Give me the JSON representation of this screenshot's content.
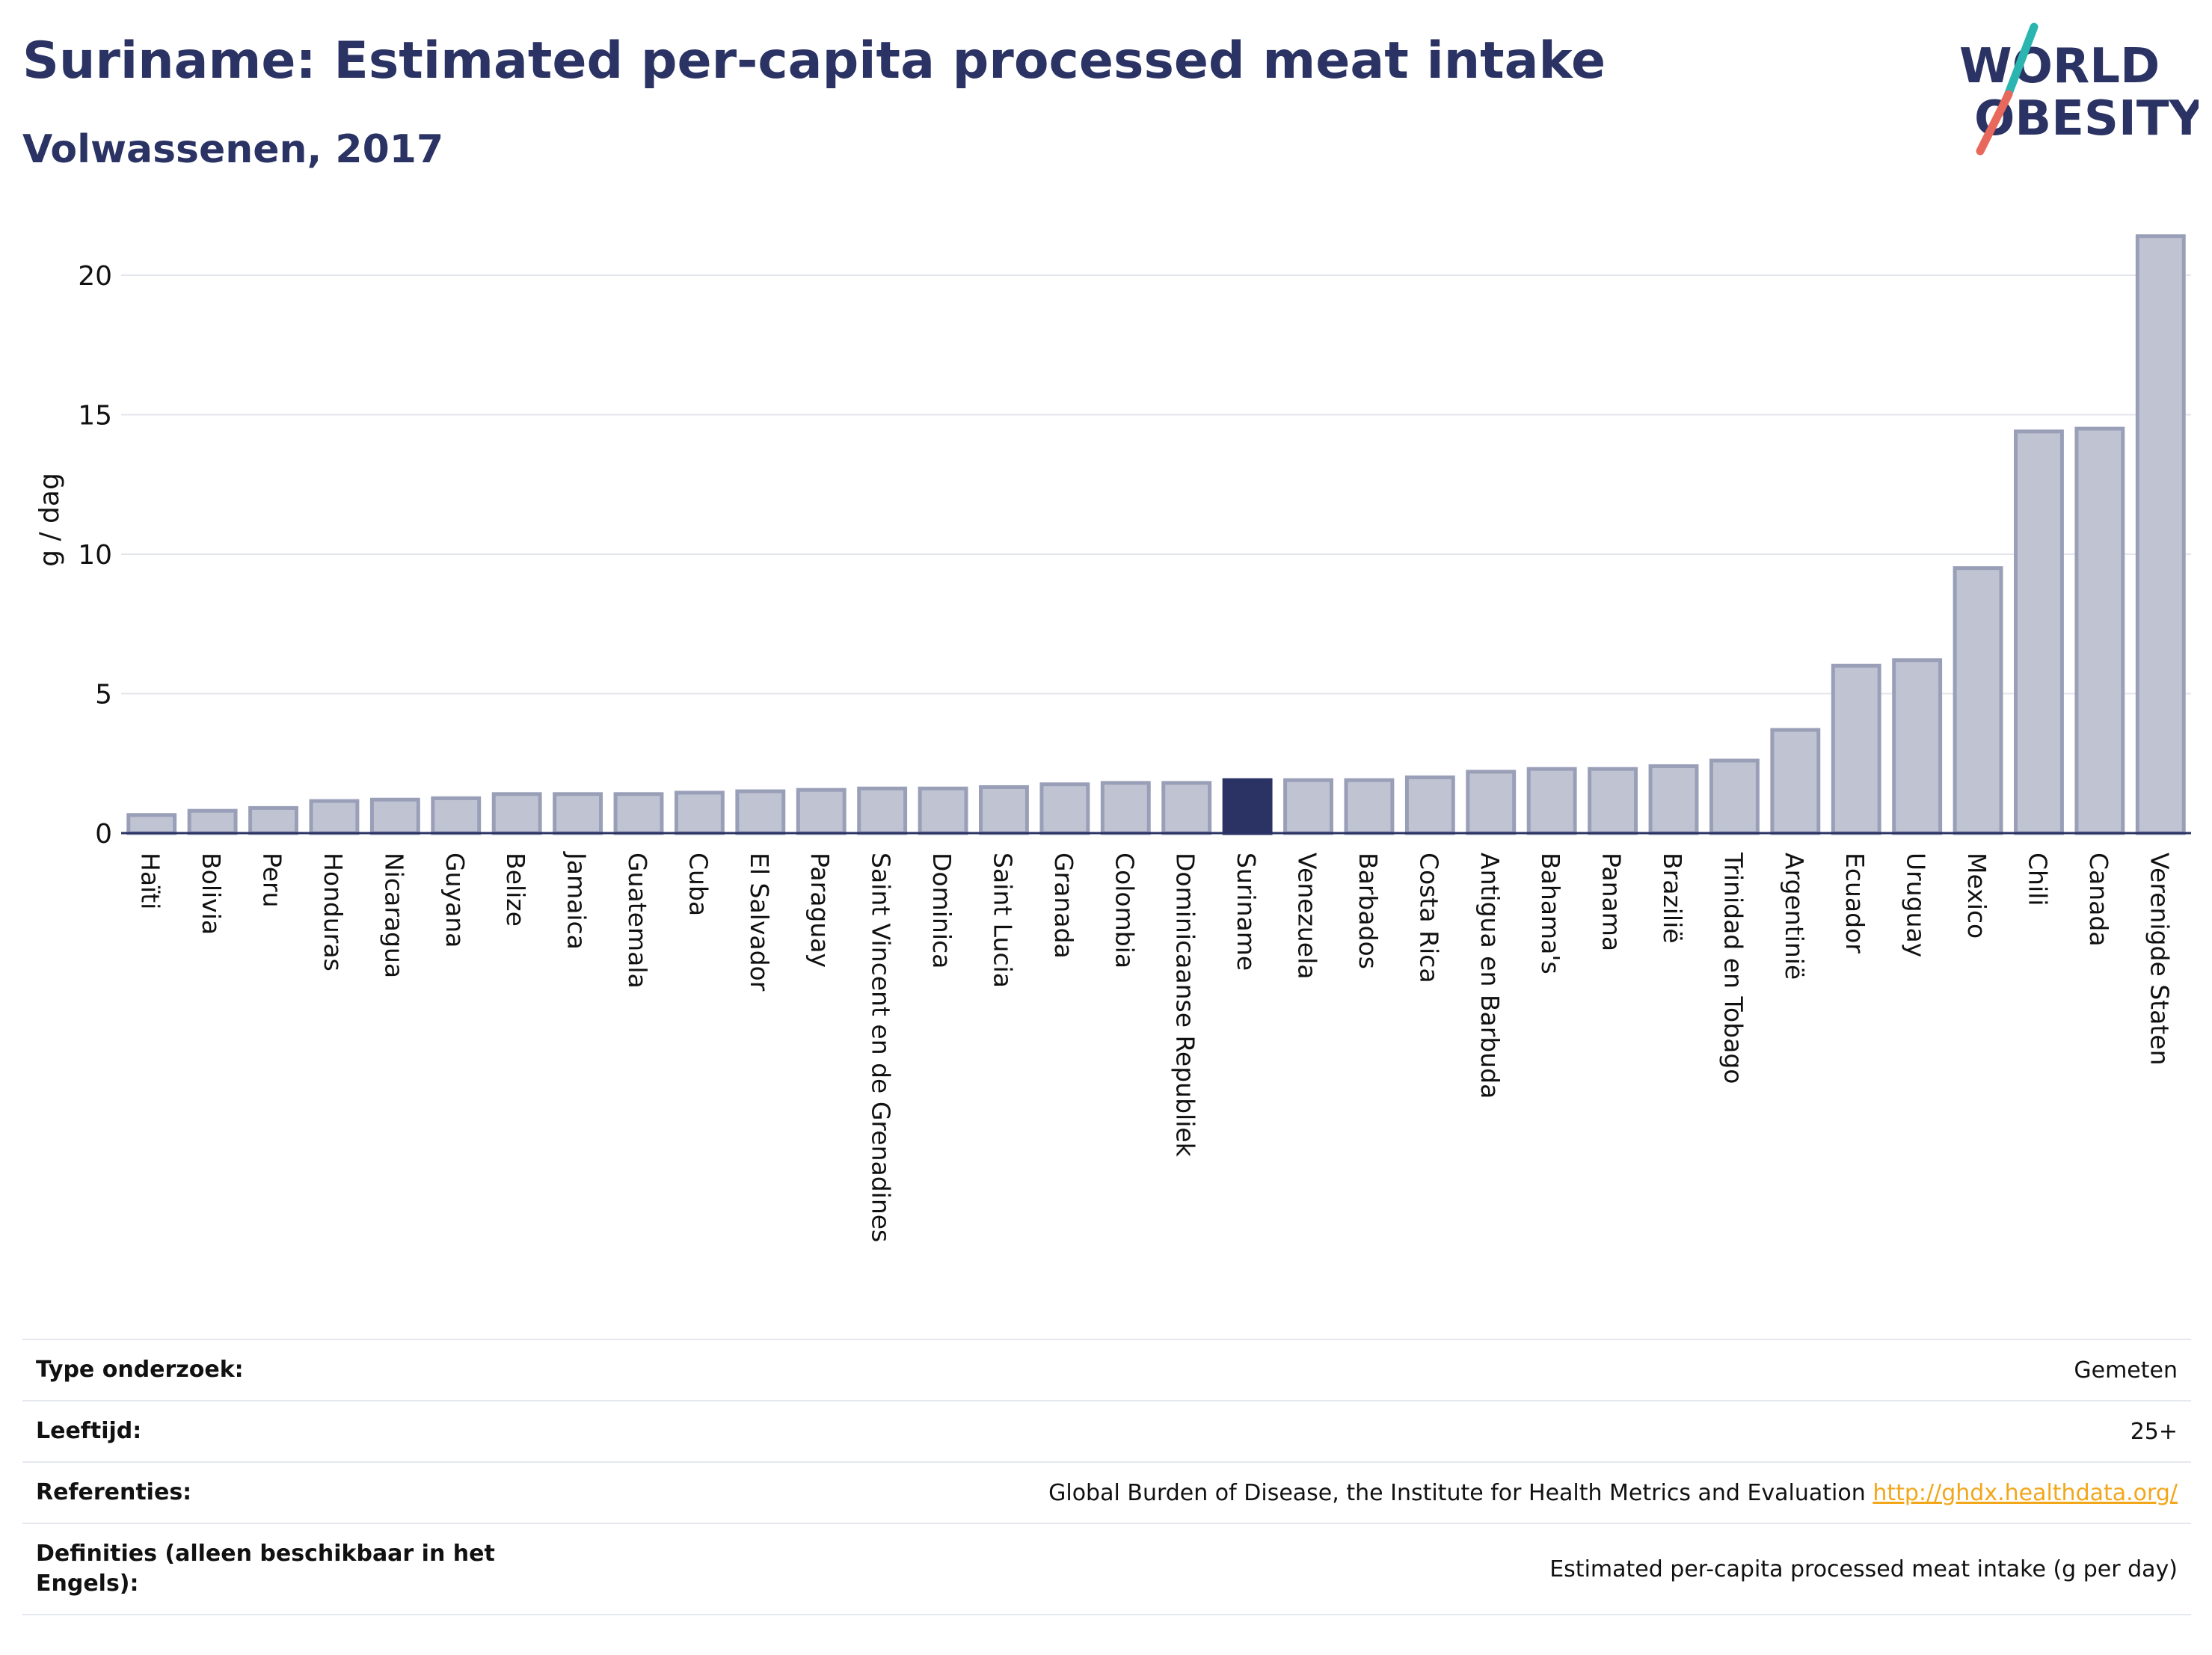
{
  "header": {
    "title": "Suriname: Estimated per-capita processed meat intake",
    "subtitle": "Volwassenen, 2017"
  },
  "logo": {
    "line1": "WORLD",
    "line2": "OBESITY",
    "colors": {
      "text": "#2a3363",
      "slash_top": "#2bb5b0",
      "slash_bottom": "#e8685b"
    }
  },
  "chart_data": {
    "type": "bar",
    "title": "Suriname: Estimated per-capita processed meat intake",
    "subtitle": "Volwassenen, 2017",
    "xlabel": "",
    "ylabel": "g / dag",
    "ylim": [
      0,
      22
    ],
    "yticks": [
      0,
      5,
      10,
      15,
      20
    ],
    "grid": true,
    "highlight": "Suriname",
    "colors": {
      "bar": "#c0c4d2",
      "bar_edge": "#9a9fb8",
      "highlight": "#2a3363"
    },
    "categories": [
      "Haïti",
      "Bolivia",
      "Peru",
      "Honduras",
      "Nicaragua",
      "Guyana",
      "Belize",
      "Jamaica",
      "Guatemala",
      "Cuba",
      "El Salvador",
      "Paraguay",
      "Saint Vincent en de Grenadines",
      "Dominica",
      "Saint Lucia",
      "Granada",
      "Colombia",
      "Dominicaanse Republiek",
      "Suriname",
      "Venezuela",
      "Barbados",
      "Costa Rica",
      "Antigua en Barbuda",
      "Bahama's",
      "Panama",
      "Brazilië",
      "Trinidad en Tobago",
      "Argentinië",
      "Ecuador",
      "Uruguay",
      "Mexico",
      "Chili",
      "Canada",
      "Verenigde Staten"
    ],
    "values": [
      0.65,
      0.8,
      0.9,
      1.15,
      1.2,
      1.25,
      1.4,
      1.4,
      1.4,
      1.45,
      1.5,
      1.55,
      1.6,
      1.6,
      1.65,
      1.75,
      1.8,
      1.8,
      1.9,
      1.9,
      1.9,
      2.0,
      2.2,
      2.3,
      2.3,
      2.4,
      2.6,
      3.7,
      6.0,
      6.2,
      9.5,
      14.4,
      14.5,
      21.4
    ]
  },
  "meta": [
    {
      "key": "Type onderzoek:",
      "value": "Gemeten"
    },
    {
      "key": "Leeftijd:",
      "value": "25+"
    },
    {
      "key": "Referenties:",
      "value": "Global Burden of Disease, the Institute for Health Metrics and Evaluation",
      "link": "http://ghdx.healthdata.org/"
    },
    {
      "key": "Definities (alleen beschikbaar in het Engels):",
      "value": "Estimated per-capita processed meat intake (g per day)"
    }
  ]
}
